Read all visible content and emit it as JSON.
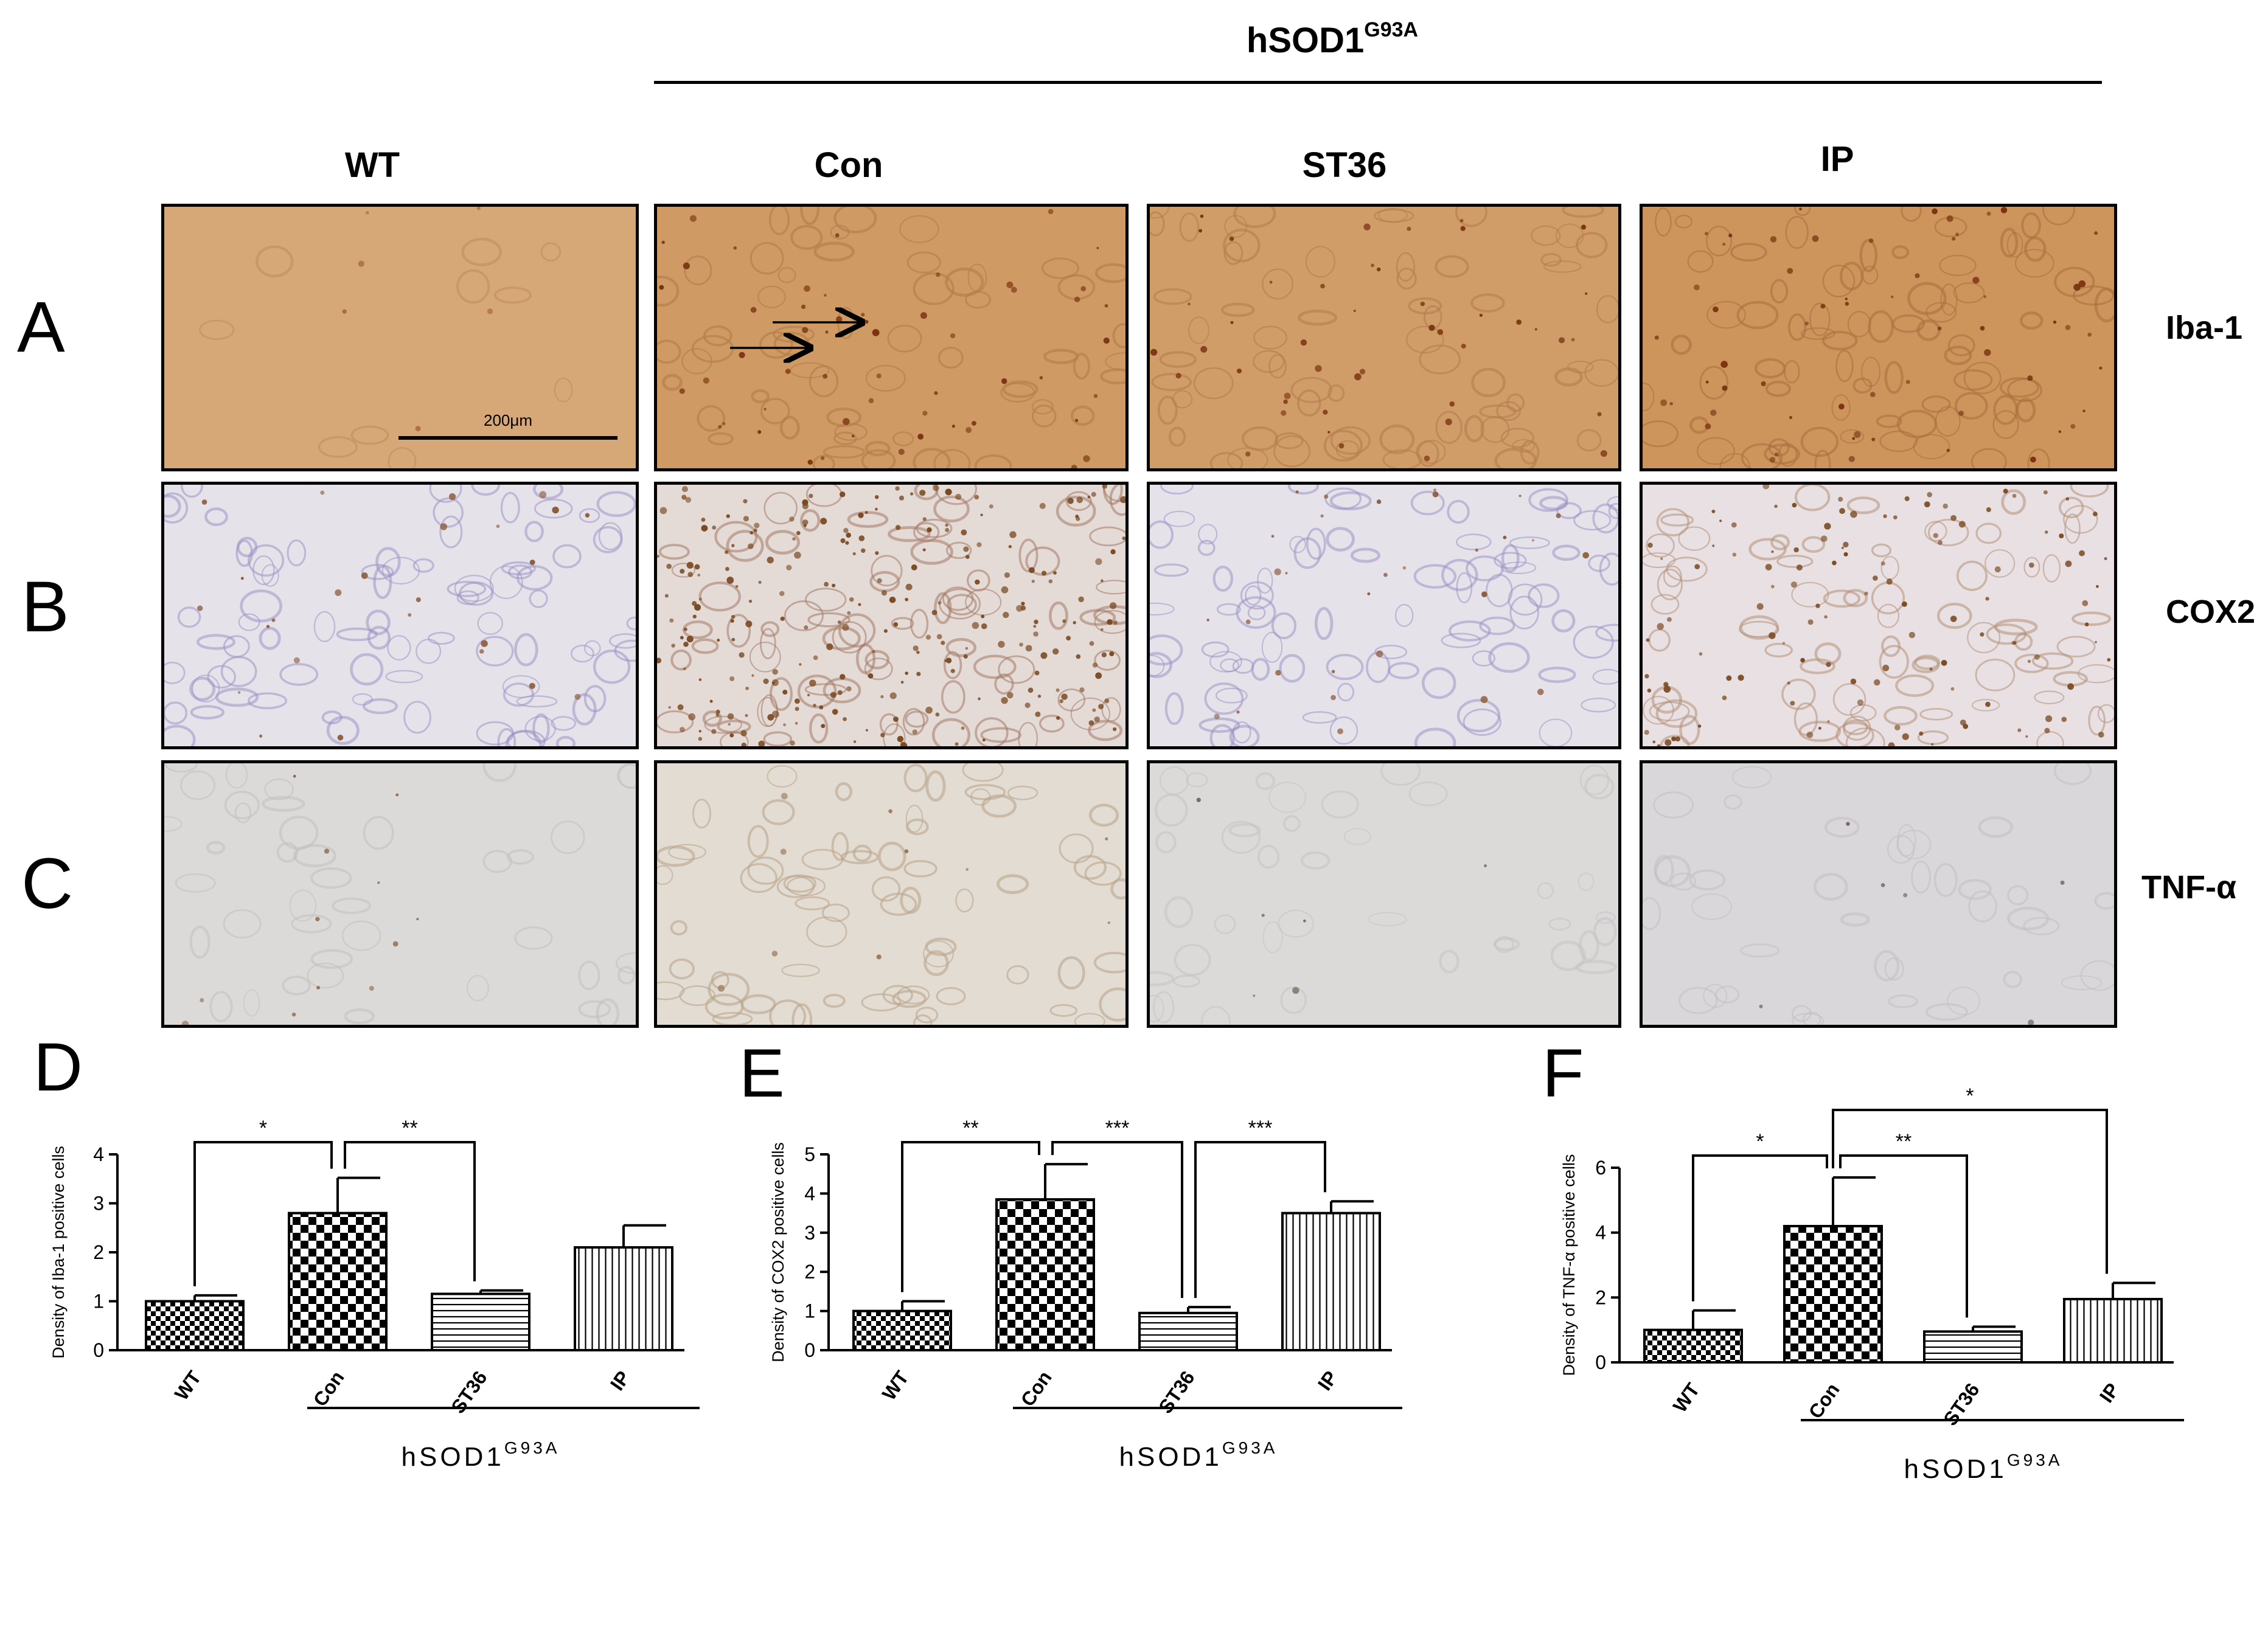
{
  "figure": {
    "group_title": "hSOD1",
    "group_title_sup": "G93A",
    "columns": [
      "WT",
      "Con",
      "ST36",
      "IP"
    ],
    "rows": [
      {
        "letter": "A",
        "marker": "Iba-1"
      },
      {
        "letter": "B",
        "marker": "COX2"
      },
      {
        "letter": "C",
        "marker": "TNF-α"
      }
    ],
    "scale_bar_label": "200μm",
    "stain_colors": {
      "iba1_background": "#d2a06e",
      "iba1_cells": "#7a3210",
      "he_background": "#e6e2ea",
      "hematoxylin": "#9d94c4",
      "dab": "#7a4a22",
      "tnf_background": "#dcdad9"
    }
  },
  "chart_data": [
    {
      "panel": "D",
      "type": "bar",
      "ylabel": "Density of Iba-1 positive cells",
      "categories": [
        "WT",
        "Con",
        "ST36",
        "IP"
      ],
      "values": [
        1.0,
        2.8,
        1.15,
        2.1
      ],
      "errors": [
        0.12,
        0.72,
        0.07,
        0.45
      ],
      "ylim": [
        0,
        4
      ],
      "yticks": [
        "0",
        "1",
        "2",
        "3",
        "4"
      ],
      "patterns": [
        "checker-fine",
        "checker-bold",
        "horizontal",
        "vertical"
      ],
      "significance": [
        {
          "from": 0,
          "to": 1,
          "label": "*"
        },
        {
          "from": 1,
          "to": 2,
          "label": "**"
        }
      ],
      "group_label": "hSOD1",
      "group_label_sup": "G93A"
    },
    {
      "panel": "E",
      "type": "bar",
      "ylabel": "Density of COX2 positive cells",
      "categories": [
        "WT",
        "Con",
        "ST36",
        "IP"
      ],
      "values": [
        1.0,
        3.85,
        0.95,
        3.5
      ],
      "errors": [
        0.25,
        0.9,
        0.15,
        0.3
      ],
      "ylim": [
        0,
        5
      ],
      "yticks": [
        "0",
        "1",
        "2",
        "3",
        "4",
        "5"
      ],
      "patterns": [
        "checker-fine",
        "checker-bold",
        "horizontal",
        "vertical"
      ],
      "significance": [
        {
          "from": 0,
          "to": 1,
          "label": "**"
        },
        {
          "from": 1,
          "to": 2,
          "label": "***"
        },
        {
          "from": 2,
          "to": 3,
          "label": "***"
        }
      ],
      "group_label": "hSOD1",
      "group_label_sup": "G93A"
    },
    {
      "panel": "F",
      "type": "bar",
      "ylabel": "Density of TNF-α positive cells",
      "categories": [
        "WT",
        "Con",
        "ST36",
        "IP"
      ],
      "values": [
        1.0,
        4.2,
        0.95,
        1.95
      ],
      "errors": [
        0.6,
        1.5,
        0.15,
        0.5
      ],
      "ylim": [
        0,
        6
      ],
      "yticks": [
        "0",
        "2",
        "4",
        "6"
      ],
      "patterns": [
        "checker-fine",
        "checker-bold",
        "horizontal",
        "vertical"
      ],
      "significance": [
        {
          "from": 0,
          "to": 1,
          "label": "*"
        },
        {
          "from": 1,
          "to": 2,
          "label": "**"
        },
        {
          "from": 1,
          "to": 3,
          "label": "*"
        }
      ],
      "group_label": "hSOD1",
      "group_label_sup": "G93A"
    }
  ]
}
